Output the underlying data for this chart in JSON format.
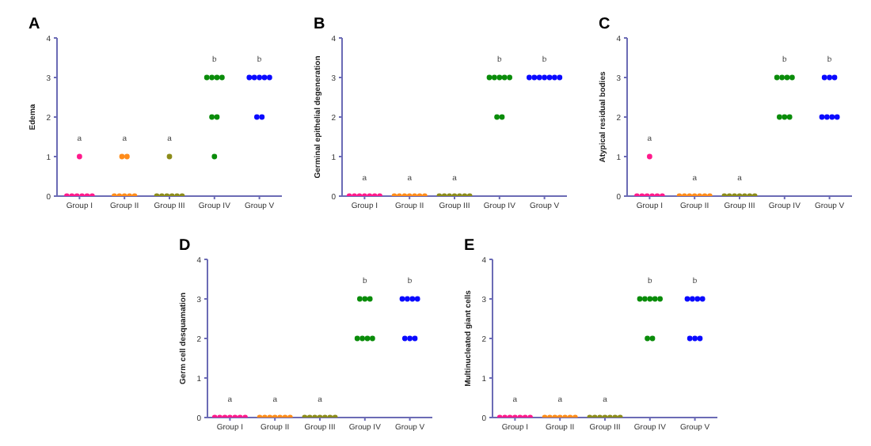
{
  "chart_data": [
    {
      "type": "scatter",
      "title": "A",
      "ylabel": "Edema",
      "categories": [
        "Group I",
        "Group II",
        "Group III",
        "Group IV",
        "Group V"
      ],
      "ylim": [
        0,
        4
      ],
      "yticks": [
        0,
        1,
        2,
        3,
        4
      ],
      "grid": false,
      "legend": false,
      "marker": "circle",
      "series": [
        {
          "color": "#ff1a8c",
          "x": [
            "Group I",
            "Group I",
            "Group I",
            "Group I",
            "Group I",
            "Group I",
            "Group I"
          ],
          "values": [
            1,
            0,
            0,
            0,
            0,
            0,
            0
          ]
        },
        {
          "color": "#ff8c1a",
          "x": [
            "Group II",
            "Group II",
            "Group II",
            "Group II",
            "Group II",
            "Group II",
            "Group II"
          ],
          "values": [
            1,
            1,
            0,
            0,
            0,
            0,
            0
          ]
        },
        {
          "color": "#8c8c1a",
          "x": [
            "Group III",
            "Group III",
            "Group III",
            "Group III",
            "Group III",
            "Group III",
            "Group III"
          ],
          "values": [
            1,
            0,
            0,
            0,
            0,
            0,
            0
          ]
        },
        {
          "color": "#0a8c0a",
          "x": [
            "Group IV",
            "Group IV",
            "Group IV",
            "Group IV",
            "Group IV",
            "Group IV",
            "Group IV"
          ],
          "values": [
            3,
            3,
            3,
            3,
            2,
            2,
            1
          ]
        },
        {
          "color": "#0a0aff",
          "x": [
            "Group V",
            "Group V",
            "Group V",
            "Group V",
            "Group V",
            "Group V",
            "Group V"
          ],
          "values": [
            3,
            3,
            3,
            3,
            3,
            2,
            2
          ]
        }
      ],
      "annotations": [
        "a",
        "a",
        "a",
        "b",
        "b"
      ]
    },
    {
      "type": "scatter",
      "title": "B",
      "ylabel": "Germinal epithelial degeneration",
      "categories": [
        "Group I",
        "Group II",
        "Group III",
        "Group IV",
        "Group V"
      ],
      "ylim": [
        0,
        4
      ],
      "yticks": [
        0,
        1,
        2,
        3,
        4
      ],
      "grid": false,
      "legend": false,
      "marker": "circle",
      "series": [
        {
          "color": "#ff1a8c",
          "x": [
            "Group I",
            "Group I",
            "Group I",
            "Group I",
            "Group I",
            "Group I",
            "Group I"
          ],
          "values": [
            0,
            0,
            0,
            0,
            0,
            0,
            0
          ]
        },
        {
          "color": "#ff8c1a",
          "x": [
            "Group II",
            "Group II",
            "Group II",
            "Group II",
            "Group II",
            "Group II",
            "Group II"
          ],
          "values": [
            0,
            0,
            0,
            0,
            0,
            0,
            0
          ]
        },
        {
          "color": "#8c8c1a",
          "x": [
            "Group III",
            "Group III",
            "Group III",
            "Group III",
            "Group III",
            "Group III",
            "Group III"
          ],
          "values": [
            0,
            0,
            0,
            0,
            0,
            0,
            0
          ]
        },
        {
          "color": "#0a8c0a",
          "x": [
            "Group IV",
            "Group IV",
            "Group IV",
            "Group IV",
            "Group IV",
            "Group IV",
            "Group IV"
          ],
          "values": [
            3,
            3,
            3,
            3,
            3,
            2,
            2
          ]
        },
        {
          "color": "#0a0aff",
          "x": [
            "Group V",
            "Group V",
            "Group V",
            "Group V",
            "Group V",
            "Group V",
            "Group V"
          ],
          "values": [
            3,
            3,
            3,
            3,
            3,
            3,
            3
          ]
        }
      ],
      "annotations": [
        "a",
        "a",
        "a",
        "b",
        "b"
      ]
    },
    {
      "type": "scatter",
      "title": "C",
      "ylabel": "Atypical residual bodies",
      "categories": [
        "Group I",
        "Group II",
        "Group III",
        "Group IV",
        "Group V"
      ],
      "ylim": [
        0,
        4
      ],
      "yticks": [
        0,
        1,
        2,
        3,
        4
      ],
      "grid": false,
      "legend": false,
      "marker": "circle",
      "series": [
        {
          "color": "#ff1a8c",
          "x": [
            "Group I",
            "Group I",
            "Group I",
            "Group I",
            "Group I",
            "Group I",
            "Group I"
          ],
          "values": [
            1,
            0,
            0,
            0,
            0,
            0,
            0
          ]
        },
        {
          "color": "#ff8c1a",
          "x": [
            "Group II",
            "Group II",
            "Group II",
            "Group II",
            "Group II",
            "Group II",
            "Group II"
          ],
          "values": [
            0,
            0,
            0,
            0,
            0,
            0,
            0
          ]
        },
        {
          "color": "#8c8c1a",
          "x": [
            "Group III",
            "Group III",
            "Group III",
            "Group III",
            "Group III",
            "Group III",
            "Group III"
          ],
          "values": [
            0,
            0,
            0,
            0,
            0,
            0,
            0
          ]
        },
        {
          "color": "#0a8c0a",
          "x": [
            "Group IV",
            "Group IV",
            "Group IV",
            "Group IV",
            "Group IV",
            "Group IV",
            "Group IV"
          ],
          "values": [
            3,
            3,
            3,
            3,
            2,
            2,
            2
          ]
        },
        {
          "color": "#0a0aff",
          "x": [
            "Group V",
            "Group V",
            "Group V",
            "Group V",
            "Group V",
            "Group V",
            "Group V"
          ],
          "values": [
            3,
            3,
            3,
            2,
            2,
            2,
            2
          ]
        }
      ],
      "annotations": [
        "a",
        "a",
        "a",
        "b",
        "b"
      ]
    },
    {
      "type": "scatter",
      "title": "D",
      "ylabel": "Germ cell desquamation",
      "categories": [
        "Group I",
        "Group II",
        "Group III",
        "Group IV",
        "Group V"
      ],
      "ylim": [
        0,
        4
      ],
      "yticks": [
        0,
        1,
        2,
        3,
        4
      ],
      "grid": false,
      "legend": false,
      "marker": "circle",
      "series": [
        {
          "color": "#ff1a8c",
          "x": [
            "Group I",
            "Group I",
            "Group I",
            "Group I",
            "Group I",
            "Group I",
            "Group I"
          ],
          "values": [
            0,
            0,
            0,
            0,
            0,
            0,
            0
          ]
        },
        {
          "color": "#ff8c1a",
          "x": [
            "Group II",
            "Group II",
            "Group II",
            "Group II",
            "Group II",
            "Group II",
            "Group II"
          ],
          "values": [
            0,
            0,
            0,
            0,
            0,
            0,
            0
          ]
        },
        {
          "color": "#8c8c1a",
          "x": [
            "Group III",
            "Group III",
            "Group III",
            "Group III",
            "Group III",
            "Group III",
            "Group III"
          ],
          "values": [
            0,
            0,
            0,
            0,
            0,
            0,
            0
          ]
        },
        {
          "color": "#0a8c0a",
          "x": [
            "Group IV",
            "Group IV",
            "Group IV",
            "Group IV",
            "Group IV",
            "Group IV",
            "Group IV"
          ],
          "values": [
            3,
            3,
            3,
            2,
            2,
            2,
            2
          ]
        },
        {
          "color": "#0a0aff",
          "x": [
            "Group V",
            "Group V",
            "Group V",
            "Group V",
            "Group V",
            "Group V",
            "Group V"
          ],
          "values": [
            3,
            3,
            3,
            3,
            2,
            2,
            2
          ]
        }
      ],
      "annotations": [
        "a",
        "a",
        "a",
        "b",
        "b"
      ]
    },
    {
      "type": "scatter",
      "title": "E",
      "ylabel": "Multinucleated giant cells",
      "categories": [
        "Group I",
        "Group II",
        "Group III",
        "Group IV",
        "Group V"
      ],
      "ylim": [
        0,
        4
      ],
      "yticks": [
        0,
        1,
        2,
        3,
        4
      ],
      "grid": false,
      "legend": false,
      "marker": "circle",
      "series": [
        {
          "color": "#ff1a8c",
          "x": [
            "Group I",
            "Group I",
            "Group I",
            "Group I",
            "Group I",
            "Group I",
            "Group I"
          ],
          "values": [
            0,
            0,
            0,
            0,
            0,
            0,
            0
          ]
        },
        {
          "color": "#ff8c1a",
          "x": [
            "Group II",
            "Group II",
            "Group II",
            "Group II",
            "Group II",
            "Group II",
            "Group II"
          ],
          "values": [
            0,
            0,
            0,
            0,
            0,
            0,
            0
          ]
        },
        {
          "color": "#8c8c1a",
          "x": [
            "Group III",
            "Group III",
            "Group III",
            "Group III",
            "Group III",
            "Group III",
            "Group III"
          ],
          "values": [
            0,
            0,
            0,
            0,
            0,
            0,
            0
          ]
        },
        {
          "color": "#0a8c0a",
          "x": [
            "Group IV",
            "Group IV",
            "Group IV",
            "Group IV",
            "Group IV",
            "Group IV",
            "Group IV"
          ],
          "values": [
            3,
            3,
            3,
            3,
            3,
            2,
            2
          ]
        },
        {
          "color": "#0a0aff",
          "x": [
            "Group V",
            "Group V",
            "Group V",
            "Group V",
            "Group V",
            "Group V",
            "Group V"
          ],
          "values": [
            3,
            3,
            3,
            3,
            2,
            2,
            2
          ]
        }
      ],
      "annotations": [
        "a",
        "a",
        "a",
        "b",
        "b"
      ]
    }
  ]
}
